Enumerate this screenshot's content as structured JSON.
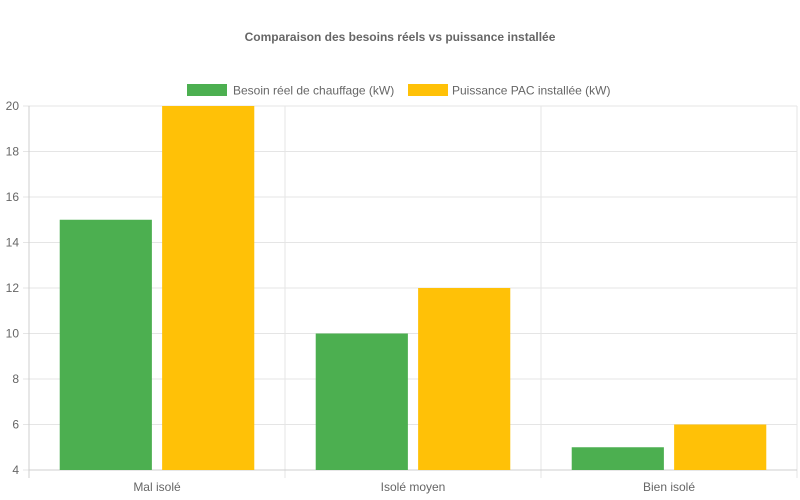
{
  "chart_data": {
    "type": "bar",
    "title": "Comparaison des besoins réels vs puissance installée",
    "categories": [
      "Mal isolé",
      "Isolé moyen",
      "Bien isolé"
    ],
    "series": [
      {
        "name": "Besoin réel de chauffage (kW)",
        "values": [
          15,
          10,
          5
        ],
        "color": "#4caf50"
      },
      {
        "name": "Puissance PAC installée (kW)",
        "values": [
          20,
          12,
          6
        ],
        "color": "#ffc107"
      }
    ],
    "xlabel": "",
    "ylabel": "",
    "ylim": [
      4,
      20
    ],
    "yticks": [
      4,
      6,
      8,
      10,
      12,
      14,
      16,
      18,
      20
    ],
    "grid": true,
    "legend_position": "top"
  }
}
